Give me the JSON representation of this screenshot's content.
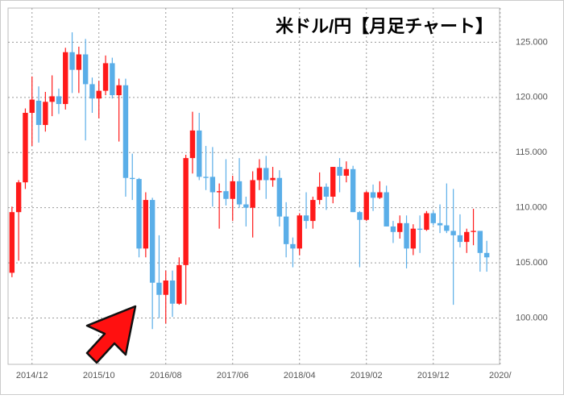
{
  "chart_data": {
    "type": "candlestick",
    "title": "米ドル/円【月足チャート】",
    "categories": [
      null,
      null,
      null,
      "2014/12",
      null,
      null,
      null,
      null,
      null,
      null,
      null,
      null,
      null,
      "2015/10",
      null,
      null,
      null,
      null,
      null,
      null,
      null,
      null,
      null,
      "2016/08",
      null,
      null,
      null,
      null,
      null,
      null,
      null,
      null,
      null,
      "2017/06",
      null,
      null,
      null,
      null,
      null,
      null,
      null,
      null,
      null,
      "2018/04",
      null,
      null,
      null,
      null,
      null,
      null,
      null,
      null,
      null,
      "2019/02",
      null,
      null,
      null,
      null,
      null,
      null,
      null,
      null,
      null,
      "2019/12",
      null,
      null,
      null,
      null,
      null,
      null,
      null,
      null,
      null,
      "2020/"
    ],
    "open": [
      104.1,
      109.6,
      112.3,
      118.6,
      119.7,
      117.5,
      119.6,
      120.1,
      119.4,
      124.1,
      122.5,
      123.9,
      121.2,
      119.9,
      120.6,
      123.1,
      120.2,
      121.1,
      112.7,
      112.6,
      106.3,
      110.7,
      103.2,
      102.1,
      103.4,
      101.3,
      104.8,
      114.5,
      117.0,
      112.8,
      112.8,
      111.4,
      111.5,
      110.8,
      112.4,
      110.3,
      110.0,
      112.5,
      113.6,
      112.5,
      112.7,
      109.2,
      106.7,
      106.3,
      109.3,
      108.8,
      110.7,
      111.9,
      111.0,
      113.7,
      112.9,
      113.5,
      109.6,
      108.9,
      111.4,
      110.9,
      111.4,
      108.3,
      107.8,
      108.6,
      106.3,
      108.1,
      108.0,
      109.5,
      108.6,
      108.4,
      107.9,
      107.5,
      106.9,
      107.8,
      107.9,
      105.9,
      null,
      null
    ],
    "high": [
      110.1,
      112.5,
      119.0,
      121.9,
      121.0,
      120.5,
      122.0,
      120.8,
      124.5,
      125.9,
      124.6,
      125.3,
      121.8,
      121.5,
      123.8,
      123.6,
      121.7,
      121.7,
      114.9,
      112.7,
      111.4,
      110.9,
      107.5,
      104.3,
      104.3,
      105.5,
      114.8,
      118.7,
      118.6,
      115.6,
      115.5,
      112.2,
      114.4,
      112.9,
      114.5,
      111.0,
      113.3,
      114.4,
      114.7,
      113.7,
      113.4,
      110.5,
      107.3,
      109.5,
      111.4,
      111.0,
      113.2,
      112.2,
      113.7,
      114.5,
      114.2,
      113.8,
      109.7,
      111.5,
      112.1,
      112.4,
      112.0,
      108.8,
      109.3,
      109.3,
      108.5,
      109.3,
      109.7,
      109.7,
      110.3,
      112.2,
      111.7,
      109.4,
      108.1,
      109.9,
      107.8,
      107.0,
      null,
      null
    ],
    "low": [
      103.7,
      105.2,
      111.7,
      115.6,
      115.9,
      116.9,
      118.3,
      118.5,
      118.9,
      120.4,
      120.4,
      116.1,
      118.6,
      118.1,
      120.2,
      119.9,
      116.0,
      111.0,
      110.7,
      105.5,
      105.5,
      99.0,
      100.0,
      99.5,
      100.1,
      101.2,
      101.2,
      113.1,
      112.5,
      111.6,
      110.1,
      108.1,
      110.2,
      108.8,
      110.0,
      108.3,
      107.3,
      111.6,
      110.8,
      111.9,
      108.3,
      105.5,
      104.6,
      105.7,
      108.1,
      108.1,
      110.3,
      109.8,
      110.4,
      111.4,
      112.3,
      109.6,
      104.6,
      108.8,
      109.7,
      110.8,
      108.3,
      106.8,
      107.2,
      104.5,
      105.7,
      105.9,
      107.9,
      108.4,
      107.7,
      107.7,
      101.2,
      106.4,
      105.9,
      106.6,
      104.2,
      104.2,
      null,
      null
    ],
    "close": [
      109.6,
      112.3,
      118.6,
      119.8,
      117.5,
      119.6,
      120.1,
      119.4,
      124.1,
      122.5,
      123.9,
      121.2,
      119.9,
      120.6,
      123.1,
      120.2,
      121.1,
      112.7,
      112.6,
      106.3,
      110.7,
      103.2,
      102.1,
      103.4,
      101.3,
      104.8,
      114.5,
      117.0,
      112.8,
      112.7,
      111.4,
      111.5,
      110.8,
      112.4,
      110.3,
      110.0,
      112.5,
      113.6,
      112.5,
      112.7,
      109.2,
      106.7,
      106.3,
      109.3,
      108.8,
      110.7,
      111.9,
      111.0,
      113.7,
      112.9,
      113.5,
      109.6,
      108.9,
      111.4,
      110.9,
      111.4,
      108.3,
      107.8,
      108.6,
      106.3,
      108.1,
      108.0,
      109.5,
      108.6,
      108.4,
      107.9,
      107.5,
      106.9,
      107.8,
      107.9,
      105.9,
      105.5,
      null,
      null
    ],
    "up_color": "#ff1a1a",
    "down_color": "#5aaee8",
    "ylim": [
      95.8,
      128.1
    ],
    "yticks": [
      {
        "value": 100,
        "label": "100.000"
      },
      {
        "value": 105,
        "label": "105.000"
      },
      {
        "value": 110,
        "label": "110.000"
      },
      {
        "value": 115,
        "label": "115.000"
      },
      {
        "value": 120,
        "label": "120.000"
      },
      {
        "value": 125,
        "label": "125.000"
      }
    ],
    "grid": true
  }
}
